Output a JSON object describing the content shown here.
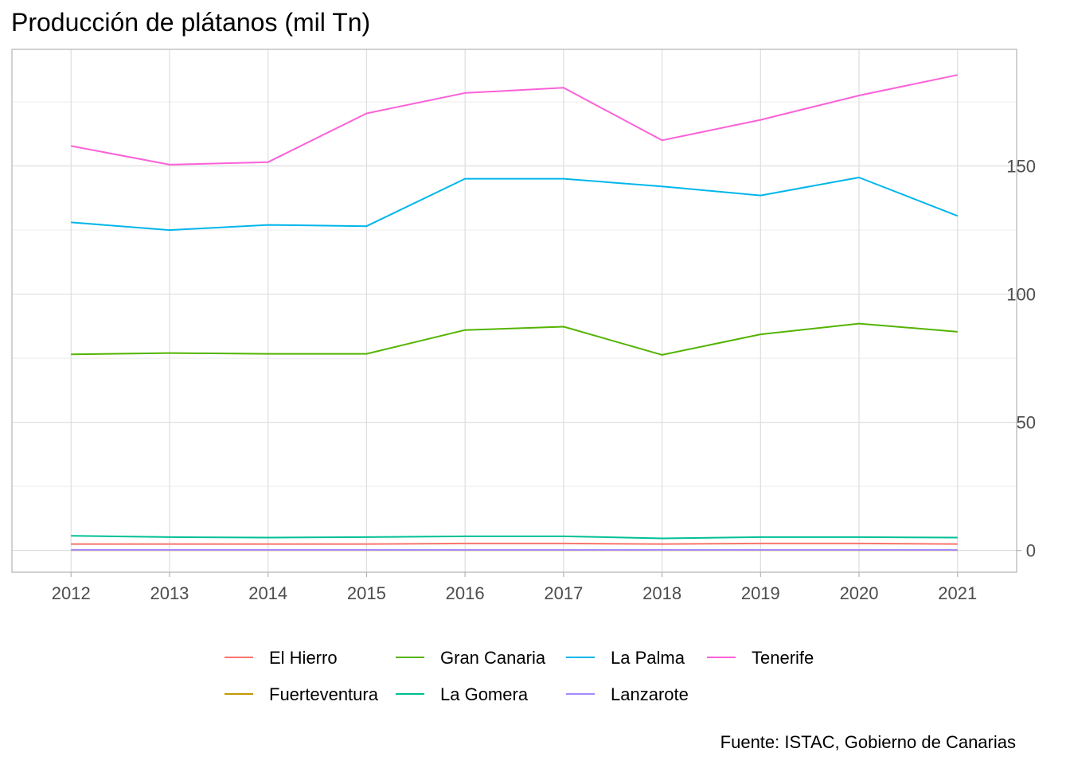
{
  "chart_data": {
    "type": "line",
    "title": "Producción de plátanos (mil Tn)",
    "caption": "Fuente: ISTAC, Gobierno de Canarias",
    "x": [
      2012,
      2013,
      2014,
      2015,
      2016,
      2017,
      2018,
      2019,
      2020,
      2021
    ],
    "x_tick_labels": [
      "2012",
      "2013",
      "2014",
      "2015",
      "2016",
      "2017",
      "2018",
      "2019",
      "2020",
      "2021"
    ],
    "ylim": [
      -8.5,
      195.5
    ],
    "xlim": [
      2011.4,
      2021.6
    ],
    "y_ticks": [
      0,
      50,
      100,
      150
    ],
    "y_tick_labels": [
      "0",
      "50",
      "100",
      "150"
    ],
    "y_axis_position": "right",
    "grid": true,
    "legend_position": "bottom",
    "series": [
      {
        "name": "El Hierro",
        "color": "#F8766D",
        "values": [
          2.5,
          2.5,
          2.5,
          2.5,
          2.7,
          2.7,
          2.5,
          2.7,
          2.7,
          2.5
        ]
      },
      {
        "name": "Fuerteventura",
        "color": "#C49A00",
        "values": [
          0.1,
          0.1,
          0.1,
          0.1,
          0.1,
          0.1,
          0.1,
          0.1,
          0.1,
          0.1
        ]
      },
      {
        "name": "Gran Canaria",
        "color": "#53B400",
        "values": [
          76.5,
          77.0,
          76.7,
          76.7,
          86.0,
          87.3,
          76.3,
          84.3,
          88.5,
          85.3
        ]
      },
      {
        "name": "La Gomera",
        "color": "#00C094",
        "values": [
          5.7,
          5.2,
          5.0,
          5.2,
          5.5,
          5.5,
          4.7,
          5.2,
          5.2,
          5.0
        ]
      },
      {
        "name": "La Palma",
        "color": "#00B6EB",
        "values": [
          128.0,
          125.0,
          127.0,
          126.5,
          145.0,
          145.0,
          142.0,
          138.5,
          145.5,
          130.5
        ]
      },
      {
        "name": "Lanzarote",
        "color": "#A58AFF",
        "values": [
          0.2,
          0.2,
          0.2,
          0.2,
          0.2,
          0.2,
          0.2,
          0.2,
          0.2,
          0.2
        ]
      },
      {
        "name": "Tenerife",
        "color": "#FB61D7",
        "values": [
          157.8,
          150.5,
          151.5,
          170.5,
          178.5,
          180.5,
          160.0,
          168.0,
          177.5,
          185.5
        ]
      }
    ]
  }
}
